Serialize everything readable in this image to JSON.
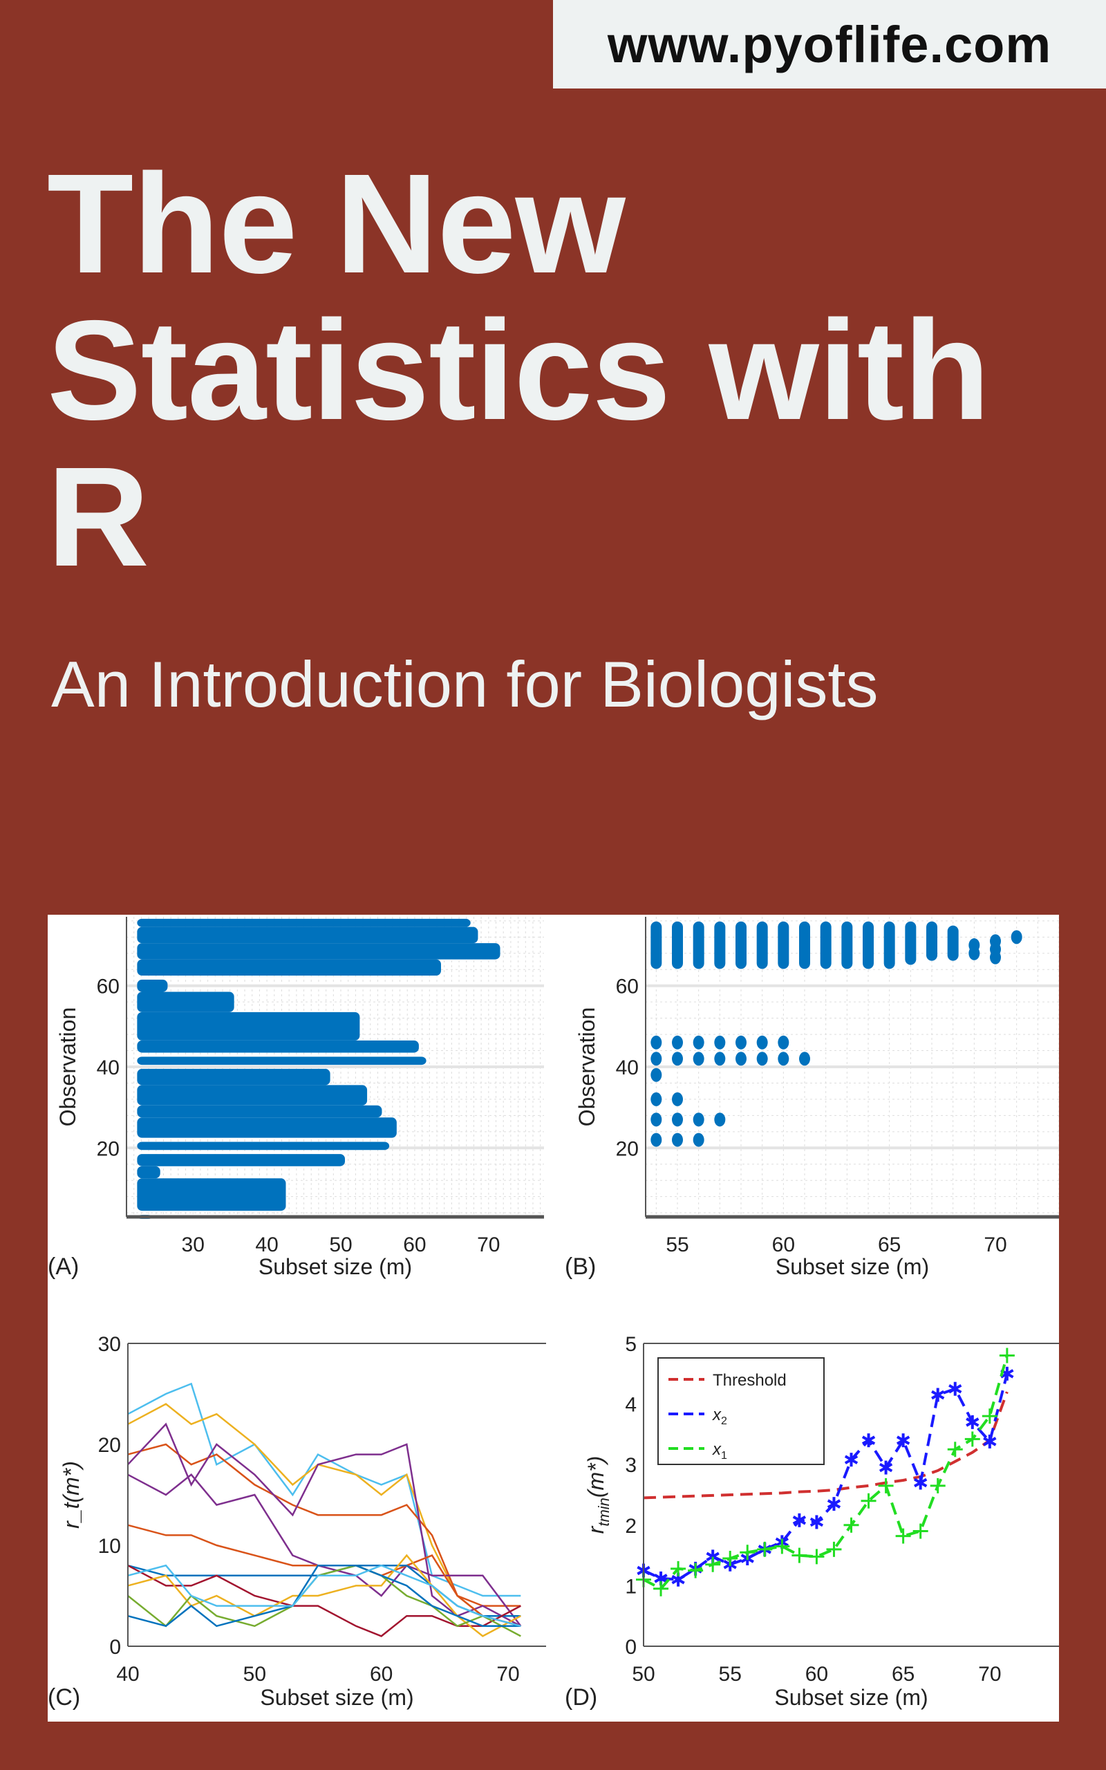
{
  "badge": {
    "text": "www.pyoflife.com"
  },
  "book": {
    "title_lines": [
      "The New",
      "Statistics with",
      "R"
    ],
    "subtitle": "An Introduction for Biologists"
  },
  "colors": {
    "background": "#8b3427",
    "text": "#eef2f2",
    "scatter": "#0072BD",
    "x2": "#1a1aff",
    "x1": "#22dd22",
    "threshold": "#d03030"
  },
  "chart_data": [
    {
      "panel": "(A)",
      "type": "scatter",
      "xlabel": "Subset size (m)",
      "ylabel": "Observation",
      "xlim": [
        21,
        77.5
      ],
      "ylim": [
        3,
        77
      ],
      "xticks": [
        30,
        40,
        50,
        60,
        70
      ],
      "yticks": [
        20,
        40,
        60
      ],
      "grid": true,
      "bands": [
        [
          3,
          3,
          24
        ],
        [
          5,
          12,
          42
        ],
        [
          13,
          15,
          25
        ],
        [
          16,
          18,
          50
        ],
        [
          20,
          21,
          56
        ],
        [
          23,
          27,
          57
        ],
        [
          28,
          30,
          55
        ],
        [
          31,
          35,
          53
        ],
        [
          36,
          39,
          48
        ],
        [
          41,
          42,
          61
        ],
        [
          44,
          46,
          60
        ],
        [
          47,
          53,
          52
        ],
        [
          54,
          58,
          35
        ],
        [
          59,
          61,
          26
        ],
        [
          63,
          66,
          63
        ],
        [
          67,
          70,
          71
        ],
        [
          71,
          74,
          68
        ],
        [
          75,
          76,
          67
        ]
      ]
    },
    {
      "panel": "(B)",
      "type": "scatter",
      "xlabel": "Subset size (m)",
      "ylabel": "Observation",
      "xlim": [
        53.5,
        73
      ],
      "ylim": [
        3,
        77
      ],
      "xticks": [
        55,
        60,
        65,
        70
      ],
      "yticks": [
        20,
        40,
        60
      ],
      "grid": true,
      "columns": [
        [
          54,
          65,
          75
        ],
        [
          55,
          65,
          75
        ],
        [
          56,
          65,
          75
        ],
        [
          57,
          65,
          75
        ],
        [
          58,
          65,
          75
        ],
        [
          59,
          65,
          75
        ],
        [
          60,
          65,
          75
        ],
        [
          61,
          65,
          75
        ],
        [
          62,
          65,
          75
        ],
        [
          63,
          65,
          75
        ],
        [
          64,
          65,
          75
        ],
        [
          65,
          65,
          75
        ],
        [
          66,
          66,
          75
        ],
        [
          67,
          67,
          75
        ],
        [
          68,
          67,
          74
        ]
      ],
      "points": [
        [
          69,
          70
        ],
        [
          69,
          68
        ],
        [
          70,
          71
        ],
        [
          70,
          69
        ],
        [
          70,
          67
        ],
        [
          71,
          72
        ],
        [
          54,
          46
        ],
        [
          55,
          46
        ],
        [
          56,
          46
        ],
        [
          57,
          46
        ],
        [
          58,
          46
        ],
        [
          59,
          46
        ],
        [
          60,
          46
        ],
        [
          54,
          42
        ],
        [
          55,
          42
        ],
        [
          56,
          42
        ],
        [
          57,
          42
        ],
        [
          58,
          42
        ],
        [
          59,
          42
        ],
        [
          60,
          42
        ],
        [
          61,
          42
        ],
        [
          54,
          38
        ],
        [
          54,
          32
        ],
        [
          55,
          32
        ],
        [
          54,
          27
        ],
        [
          55,
          27
        ],
        [
          56,
          27
        ],
        [
          57,
          27
        ],
        [
          54,
          22
        ],
        [
          55,
          22
        ],
        [
          56,
          22
        ]
      ]
    },
    {
      "panel": "(C)",
      "type": "line",
      "xlabel": "Subset size (m)",
      "ylabel": "r_t(m*)",
      "xlim": [
        40,
        73
      ],
      "ylim": [
        0,
        30
      ],
      "xticks": [
        40,
        50,
        60,
        70
      ],
      "yticks": [
        0,
        10,
        20,
        30
      ],
      "grid": false,
      "x": [
        40,
        43,
        45,
        47,
        50,
        53,
        55,
        58,
        60,
        62,
        64,
        66,
        68,
        71
      ],
      "series": [
        {
          "color": "#4DBEEE",
          "values": [
            23,
            25,
            26,
            18,
            20,
            15,
            19,
            17,
            16,
            17,
            7,
            6,
            5,
            5
          ]
        },
        {
          "color": "#EDB120",
          "values": [
            22,
            24,
            22,
            23,
            20,
            16,
            18,
            17,
            15,
            17,
            10,
            5,
            3,
            3
          ]
        },
        {
          "color": "#D95319",
          "values": [
            19,
            20,
            18,
            19,
            16,
            14,
            13,
            13,
            13,
            14,
            11,
            5,
            4,
            4
          ]
        },
        {
          "color": "#7E2F8E",
          "values": [
            18,
            22,
            16,
            20,
            17,
            13,
            18,
            19,
            19,
            20,
            5,
            3,
            4,
            2
          ]
        },
        {
          "color": "#7E2F8E",
          "values": [
            17,
            15,
            17,
            14,
            15,
            9,
            8,
            7,
            5,
            8,
            7,
            7,
            7,
            2
          ]
        },
        {
          "color": "#D95319",
          "values": [
            12,
            11,
            11,
            10,
            9,
            8,
            8,
            8,
            7,
            8,
            9,
            5,
            3,
            2
          ]
        },
        {
          "color": "#0072BD",
          "values": [
            8,
            7,
            7,
            7,
            7,
            7,
            7,
            8,
            8,
            8,
            6,
            4,
            3,
            3
          ]
        },
        {
          "color": "#A2142F",
          "values": [
            8,
            6,
            6,
            7,
            5,
            4,
            4,
            2,
            1,
            3,
            3,
            2,
            2,
            4
          ]
        },
        {
          "color": "#EDB120",
          "values": [
            6,
            7,
            4,
            5,
            3,
            5,
            5,
            6,
            6,
            9,
            6,
            3,
            1,
            3
          ]
        },
        {
          "color": "#77AC30",
          "values": [
            5,
            2,
            5,
            3,
            2,
            4,
            7,
            8,
            7,
            5,
            4,
            2,
            3,
            1
          ]
        },
        {
          "color": "#0072BD",
          "values": [
            3,
            2,
            4,
            2,
            3,
            4,
            8,
            8,
            7,
            6,
            4,
            3,
            2,
            2
          ]
        },
        {
          "color": "#4DBEEE",
          "values": [
            7,
            8,
            5,
            4,
            4,
            4,
            7,
            7,
            8,
            7,
            6,
            4,
            3,
            2
          ]
        }
      ]
    },
    {
      "panel": "(D)",
      "type": "line",
      "xlabel": "Subset size (m)",
      "ylabel": "r_tmin(m*)",
      "xlim": [
        50,
        74
      ],
      "ylim": [
        0,
        5
      ],
      "xticks": [
        50,
        55,
        60,
        65,
        70
      ],
      "yticks": [
        0,
        1,
        2,
        3,
        4,
        5
      ],
      "grid": false,
      "legend": "top-left",
      "x": [
        50,
        51,
        52,
        53,
        54,
        55,
        56,
        57,
        58,
        59,
        60,
        61,
        62,
        63,
        64,
        65,
        66,
        67,
        68,
        69,
        70,
        71
      ],
      "series": [
        {
          "name": "Threshold",
          "style": "dashed",
          "color": "#d03030",
          "values": [
            2.45,
            2.46,
            2.47,
            2.48,
            2.49,
            2.5,
            2.51,
            2.52,
            2.53,
            2.55,
            2.56,
            2.58,
            2.62,
            2.65,
            2.7,
            2.74,
            2.8,
            2.9,
            3.05,
            3.2,
            3.4,
            4.2
          ]
        },
        {
          "name": "x2",
          "style": "dashed-star",
          "color": "#1a1aff",
          "values": [
            1.25,
            1.12,
            1.1,
            1.28,
            1.48,
            1.35,
            1.45,
            1.6,
            1.72,
            2.08,
            2.05,
            2.35,
            3.08,
            3.4,
            2.95,
            3.4,
            2.7,
            4.15,
            4.25,
            3.7,
            3.38,
            4.5
          ]
        },
        {
          "name": "x1",
          "style": "dashed-plus",
          "color": "#22dd22",
          "values": [
            1.1,
            0.95,
            1.28,
            1.25,
            1.35,
            1.45,
            1.55,
            1.6,
            1.65,
            1.5,
            1.48,
            1.6,
            2.0,
            2.4,
            2.65,
            1.82,
            1.9,
            2.65,
            3.25,
            3.42,
            3.8,
            4.8
          ]
        }
      ]
    }
  ]
}
